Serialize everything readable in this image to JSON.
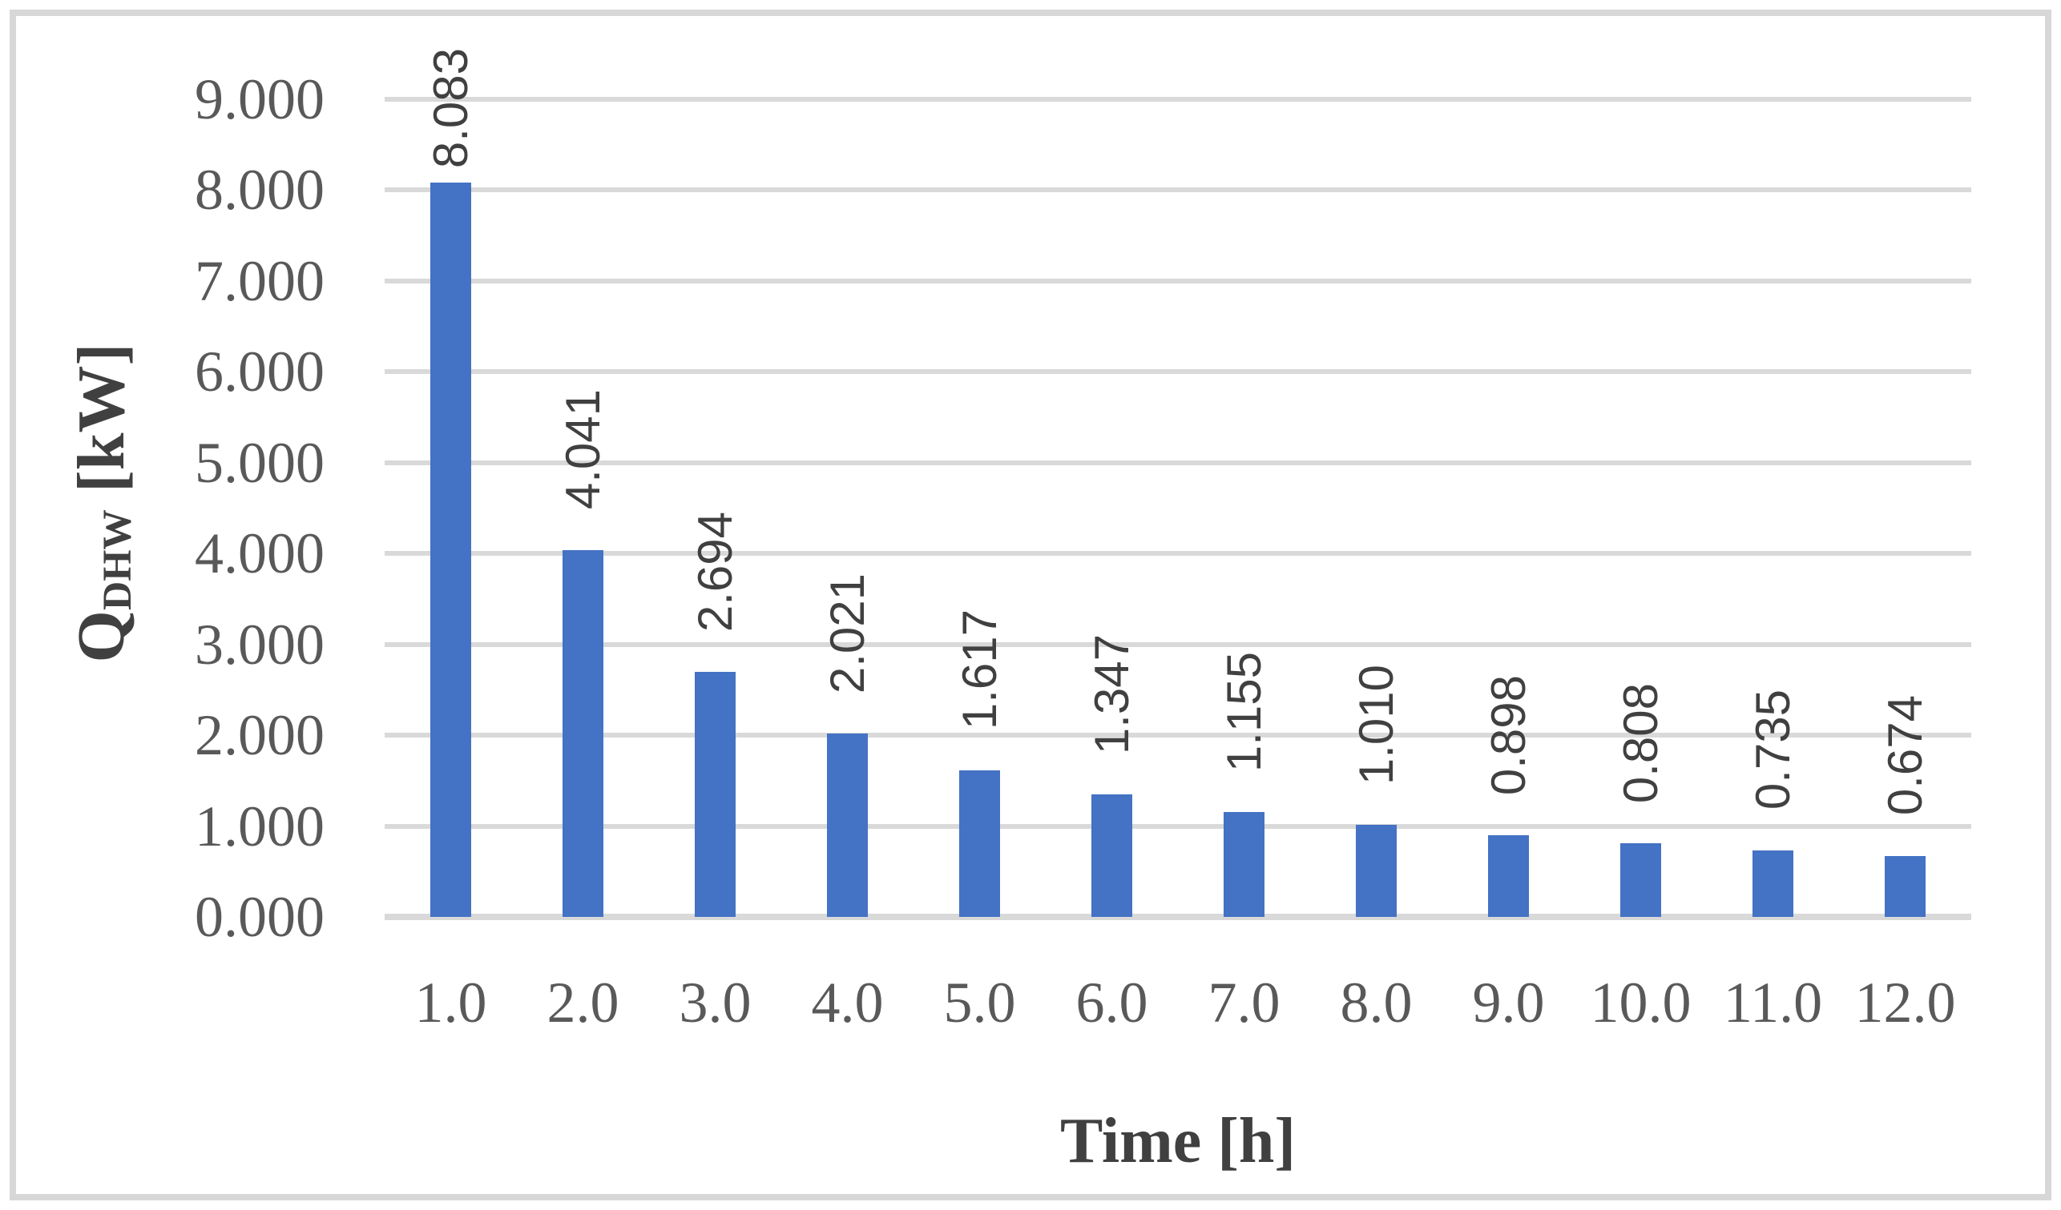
{
  "chart_data": {
    "type": "bar",
    "title": "",
    "xlabel": "Time [h]",
    "ylabel": "Q_DHW [kW]",
    "ylabel_parts": {
      "main": "Q",
      "subscript": "DHW",
      "unit": " [kW]"
    },
    "categories": [
      "1.0",
      "2.0",
      "3.0",
      "4.0",
      "5.0",
      "6.0",
      "7.0",
      "8.0",
      "9.0",
      "10.0",
      "11.0",
      "12.0"
    ],
    "values": [
      8.083,
      4.041,
      2.694,
      2.021,
      1.617,
      1.347,
      1.155,
      1.01,
      0.898,
      0.808,
      0.735,
      0.674
    ],
    "value_labels": [
      "8.083",
      "4.041",
      "2.694",
      "2.021",
      "1.617",
      "1.347",
      "1.155",
      "1.010",
      "0.898",
      "0.808",
      "0.735",
      "0.674"
    ],
    "ylim": [
      0,
      9
    ],
    "ytick_step": 1,
    "ytick_labels": [
      "9.000",
      "8.000",
      "7.000",
      "6.000",
      "5.000",
      "4.000",
      "3.000",
      "2.000",
      "1.000",
      "0.000"
    ],
    "grid": true,
    "legend": false,
    "colors": {
      "bar": "#4472C4",
      "gridline": "#D9D9D9",
      "axis_line": "#D9D9D9",
      "tick_text": "#595959",
      "title_text": "#404040",
      "data_label_text": "#404040",
      "frame_border": "#D7D7D7",
      "background": "#FFFFFF"
    }
  }
}
